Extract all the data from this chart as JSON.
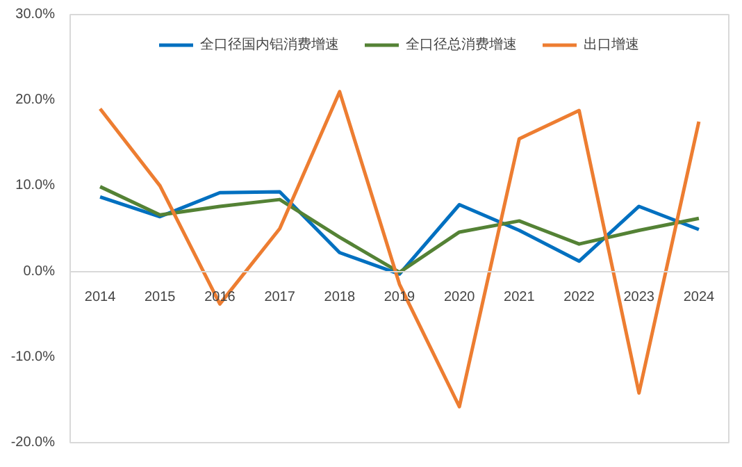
{
  "chart_data": {
    "type": "line",
    "categories": [
      "2014",
      "2015",
      "2016",
      "2017",
      "2018",
      "2019",
      "2020",
      "2021",
      "2022",
      "2023",
      "2024"
    ],
    "series": [
      {
        "name": "全口径国内铝消费增速",
        "color": "#0070c0",
        "values": [
          8.7,
          6.4,
          9.2,
          9.3,
          2.2,
          -0.3,
          7.8,
          4.8,
          1.2,
          7.6,
          4.9
        ]
      },
      {
        "name": "全口径总消费增速",
        "color": "#548235",
        "values": [
          9.9,
          6.6,
          7.6,
          8.4,
          4.0,
          -0.1,
          4.6,
          5.9,
          3.2,
          4.8,
          6.2
        ]
      },
      {
        "name": "出口增速",
        "color": "#ed7d31",
        "values": [
          19.0,
          10.0,
          -3.8,
          5.0,
          21.0,
          -1.5,
          -15.8,
          15.5,
          18.8,
          -14.2,
          17.5
        ]
      }
    ],
    "ylim": [
      -20,
      30
    ],
    "yticks": [
      {
        "value": -20,
        "label": "-20.0%"
      },
      {
        "value": -10,
        "label": "-10.0%"
      },
      {
        "value": 0,
        "label": "0.0%"
      },
      {
        "value": 10,
        "label": "10.0%"
      },
      {
        "value": 20,
        "label": "20.0%"
      },
      {
        "value": 30,
        "label": "30.0%"
      }
    ],
    "grid": false,
    "legend": "top",
    "marker": "none",
    "line_style": "solid"
  }
}
